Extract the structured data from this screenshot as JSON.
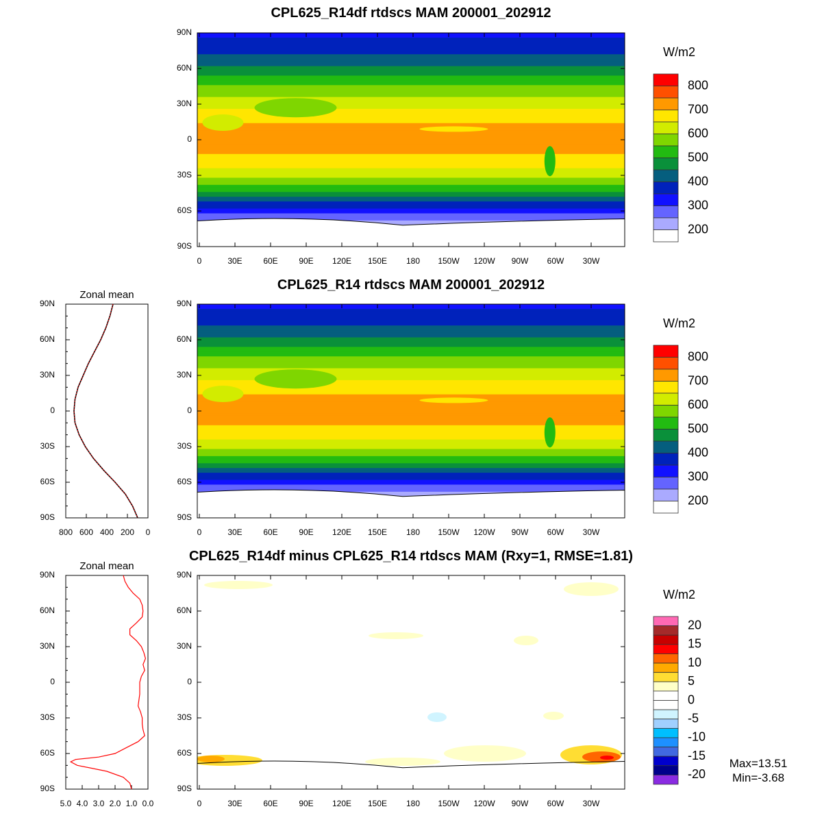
{
  "panels": [
    {
      "title": "CPL625_R14df rtdscs MAM 200001_202912",
      "unit": "W/m2"
    },
    {
      "title": "CPL625_R14 rtdscs MAM 200001_202912",
      "unit": "W/m2"
    },
    {
      "title": "CPL625_R14df minus CPL625_R14 rtdscs MAM (Rxy=1, RMSE=1.81)",
      "unit": "W/m2",
      "max_label": "Max=13.51",
      "min_label": "Min=-3.68"
    }
  ],
  "lat_labels": [
    "90N",
    "60N",
    "30N",
    "0",
    "30S",
    "60S",
    "90S"
  ],
  "lon_labels": [
    "0",
    "30E",
    "60E",
    "90E",
    "120E",
    "150E",
    "180",
    "150W",
    "120W",
    "90W",
    "60W",
    "30W"
  ],
  "colorbar_abs": {
    "colors": [
      "#ff0000",
      "#ff5000",
      "#ff9900",
      "#ffe600",
      "#d2ec00",
      "#7fd600",
      "#22bb11",
      "#0a903a",
      "#055e7e",
      "#0022bb",
      "#1111ff",
      "#6464ff",
      "#aaaaff",
      "#ffffff"
    ],
    "labels": [
      "800",
      "700",
      "600",
      "500",
      "400",
      "300",
      "200"
    ],
    "levels": [
      800,
      750,
      700,
      650,
      600,
      550,
      500,
      450,
      400,
      350,
      300,
      250,
      200
    ]
  },
  "colorbar_diff": {
    "colors": [
      "#ff69b4",
      "#a52a2a",
      "#c80000",
      "#ff0000",
      "#ff6600",
      "#ffaa00",
      "#ffdd33",
      "#ffffc8",
      "#ffffff",
      "#ffffff",
      "#d0f4ff",
      "#a0d0ff",
      "#00bfff",
      "#1e90ff",
      "#4169e1",
      "#0000cd",
      "#00008b",
      "#8a2be2"
    ],
    "labels": [
      "20",
      "15",
      "10",
      "5",
      "0",
      "-5",
      "-10",
      "-15",
      "-20"
    ]
  },
  "chart_data": [
    {
      "type": "line",
      "title": "Zonal mean",
      "xlabel": "",
      "ylabel": "",
      "xlim": [
        800,
        0
      ],
      "ylim": [
        -90,
        90
      ],
      "xtick_labels": [
        "800",
        "600",
        "400",
        "200",
        "0"
      ],
      "ytick_labels": [
        "90N",
        "60N",
        "30N",
        "0",
        "30S",
        "60S",
        "90S"
      ],
      "series": [
        {
          "name": "rtdscs zonal mean",
          "lat": [
            90,
            80,
            70,
            60,
            50,
            40,
            30,
            20,
            10,
            0,
            -10,
            -20,
            -30,
            -40,
            -50,
            -60,
            -70,
            -80,
            -90
          ],
          "values": [
            340,
            370,
            410,
            460,
            520,
            580,
            630,
            680,
            710,
            720,
            710,
            670,
            610,
            530,
            430,
            320,
            220,
            150,
            100
          ]
        }
      ]
    },
    {
      "type": "line",
      "title": "Zonal mean",
      "xlabel": "",
      "ylabel": "",
      "xlim": [
        5,
        0
      ],
      "ylim": [
        -90,
        90
      ],
      "xtick_labels": [
        "5.0",
        "4.0",
        "3.0",
        "2.0",
        "1.0",
        "0.0"
      ],
      "ytick_labels": [
        "90N",
        "60N",
        "30N",
        "0",
        "30S",
        "60S",
        "90S"
      ],
      "series": [
        {
          "name": "difference zonal mean",
          "lat": [
            90,
            85,
            80,
            75,
            70,
            65,
            60,
            55,
            50,
            45,
            40,
            35,
            30,
            25,
            20,
            15,
            10,
            5,
            0,
            -5,
            -10,
            -15,
            -20,
            -25,
            -30,
            -35,
            -40,
            -45,
            -50,
            -55,
            -60,
            -63,
            -65,
            -67,
            -70,
            -75,
            -80,
            -85,
            -90
          ],
          "values": [
            1.5,
            1.4,
            1.2,
            0.9,
            0.5,
            0.35,
            0.3,
            0.35,
            0.7,
            1.1,
            1.1,
            0.7,
            0.4,
            0.25,
            0.15,
            0.3,
            0.2,
            0.4,
            0.5,
            0.5,
            0.5,
            0.55,
            0.6,
            0.45,
            0.35,
            0.35,
            0.3,
            0.2,
            0.6,
            1.3,
            2.0,
            3.0,
            4.4,
            4.7,
            4.3,
            2.5,
            1.5,
            1.1,
            1.0
          ]
        }
      ]
    }
  ]
}
